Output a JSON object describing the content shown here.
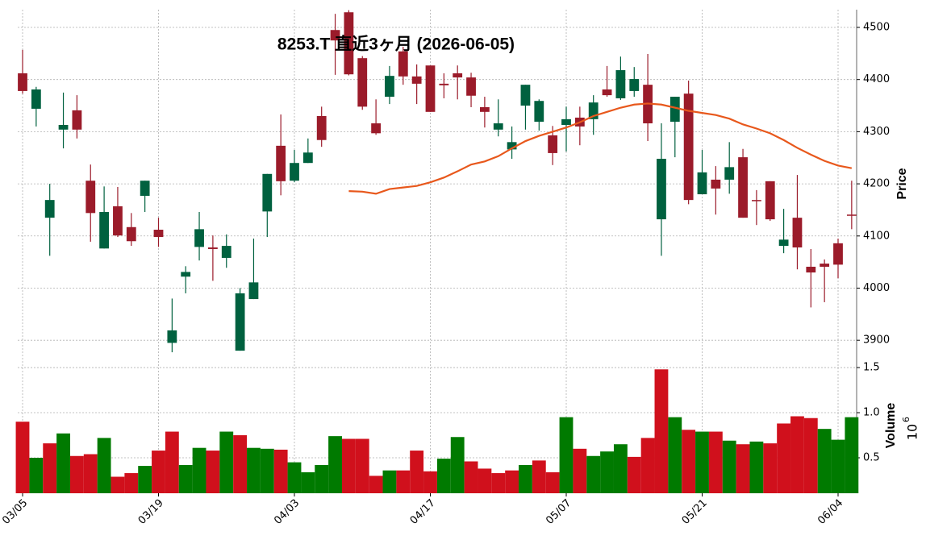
{
  "chart_data": {
    "type": "candlestick",
    "title": "8253.T  直近3ヶ月 (2026-06-05)",
    "categories": [
      "03/05",
      null,
      null,
      null,
      null,
      null,
      null,
      null,
      null,
      null,
      "03/19",
      null,
      null,
      null,
      null,
      null,
      null,
      null,
      null,
      null,
      "04/03",
      null,
      null,
      null,
      null,
      null,
      null,
      null,
      null,
      null,
      "04/17",
      null,
      null,
      null,
      null,
      null,
      null,
      null,
      null,
      null,
      "05/07",
      null,
      null,
      null,
      null,
      null,
      null,
      null,
      null,
      null,
      "05/21",
      null,
      null,
      null,
      null,
      null,
      null,
      null,
      null,
      null,
      "06/04",
      null
    ],
    "open": [
      4412,
      4344,
      4135,
      4304,
      4341,
      4206,
      4076,
      4157,
      4117,
      4177,
      4112,
      3895,
      4022,
      4079,
      4078,
      4058,
      3880,
      3979,
      4147,
      4273,
      4206,
      4240,
      4330,
      4495,
      4529,
      4441,
      4316,
      4367,
      4454,
      4406,
      4427,
      4392,
      4412,
      4404,
      4347,
      4304,
      4266,
      4350,
      4319,
      4293,
      4313,
      4327,
      4324,
      4381,
      4364,
      4378,
      4390,
      4132,
      4319,
      4373,
      4180,
      4208,
      4208,
      4251,
      4169,
      4205,
      4081,
      4135,
      4041,
      4047,
      4086,
      4141
    ],
    "high": [
      4457,
      4386,
      4200,
      4375,
      4370,
      4237,
      4195,
      4194,
      4144,
      4206,
      4135,
      3980,
      4042,
      4146,
      4101,
      4103,
      4000,
      4095,
      4219,
      4333,
      4265,
      4287,
      4348,
      4526,
      4533,
      4445,
      4362,
      4426,
      4463,
      4429,
      4427,
      4412,
      4427,
      4413,
      4367,
      4362,
      4310,
      4390,
      4362,
      4311,
      4348,
      4348,
      4370,
      4426,
      4444,
      4424,
      4449,
      4316,
      4367,
      4398,
      4265,
      4234,
      4280,
      4267,
      4188,
      4205,
      4152,
      4217,
      4075,
      4055,
      4095,
      4206
    ],
    "low": [
      4373,
      4310,
      4062,
      4268,
      4287,
      4089,
      4076,
      4098,
      4081,
      4146,
      4079,
      3877,
      3990,
      4053,
      4014,
      4039,
      3880,
      3979,
      4098,
      4178,
      4203,
      4240,
      4271,
      4409,
      4408,
      4342,
      4294,
      4353,
      4390,
      4353,
      4338,
      4364,
      4362,
      4347,
      4308,
      4291,
      4248,
      4304,
      4302,
      4236,
      4262,
      4274,
      4294,
      4367,
      4361,
      4367,
      4282,
      4062,
      4251,
      4161,
      4180,
      4141,
      4181,
      4135,
      4121,
      4129,
      4067,
      4036,
      3963,
      3973,
      4019,
      4113
    ],
    "close": [
      4378,
      4381,
      4169,
      4313,
      4304,
      4144,
      4146,
      4101,
      4090,
      4206,
      4098,
      3919,
      4031,
      4113,
      4075,
      4081,
      3990,
      4011,
      4219,
      4205,
      4240,
      4260,
      4284,
      4475,
      4410,
      4348,
      4297,
      4407,
      4406,
      4392,
      4338,
      4389,
      4404,
      4369,
      4338,
      4316,
      4280,
      4390,
      4359,
      4259,
      4324,
      4310,
      4356,
      4370,
      4418,
      4401,
      4316,
      4248,
      4367,
      4169,
      4222,
      4191,
      4232,
      4135,
      4167,
      4132,
      4093,
      4078,
      4030,
      4041,
      4045,
      4140
    ],
    "up_color": "#00613f",
    "down_color": "#9b1b2a",
    "ma": {
      "color": "#e8581c",
      "values": [
        null,
        null,
        null,
        null,
        null,
        null,
        null,
        null,
        null,
        null,
        null,
        null,
        null,
        null,
        null,
        null,
        null,
        null,
        null,
        null,
        null,
        null,
        null,
        null,
        4186,
        4185,
        4181,
        4190,
        4193,
        4196,
        4203,
        4212,
        4224,
        4237,
        4243,
        4253,
        4268,
        4282,
        4292,
        4300,
        4308,
        4318,
        4330,
        4338,
        4346,
        4352,
        4354,
        4352,
        4346,
        4340,
        4336,
        4332,
        4325,
        4314,
        4306,
        4297,
        4284,
        4269,
        4256,
        4244,
        4235,
        4230
      ]
    },
    "ylabel": "Price",
    "ylim": [
      3857,
      4534
    ],
    "yticks": [
      3900,
      4000,
      4100,
      4200,
      4300,
      4400,
      4500
    ],
    "grid": true,
    "volume": {
      "ylabel": "Volume",
      "offset_base": "10",
      "offset_exponent": "6",
      "up_color": "#007a00",
      "down_color": "#d0101c",
      "ylim": [
        0.107,
        1.554
      ],
      "yticks": [
        0.5,
        {
          "value": 1,
          "label": "1.0"
        },
        1.5
      ],
      "values": [
        0.9,
        0.5,
        0.66,
        0.77,
        0.52,
        0.54,
        0.72,
        0.29,
        0.33,
        0.41,
        0.58,
        0.79,
        0.42,
        0.61,
        0.58,
        0.79,
        0.75,
        0.61,
        0.6,
        0.59,
        0.45,
        0.34,
        0.42,
        0.74,
        0.71,
        0.71,
        0.3,
        0.36,
        0.36,
        0.58,
        0.35,
        0.49,
        0.73,
        0.46,
        0.38,
        0.33,
        0.36,
        0.42,
        0.47,
        0.34,
        0.95,
        0.6,
        0.52,
        0.57,
        0.65,
        0.51,
        0.72,
        1.48,
        0.95,
        0.81,
        0.79,
        0.79,
        0.69,
        0.65,
        0.68,
        0.66,
        0.88,
        0.96,
        0.94,
        0.82,
        0.7,
        0.95
      ]
    }
  }
}
